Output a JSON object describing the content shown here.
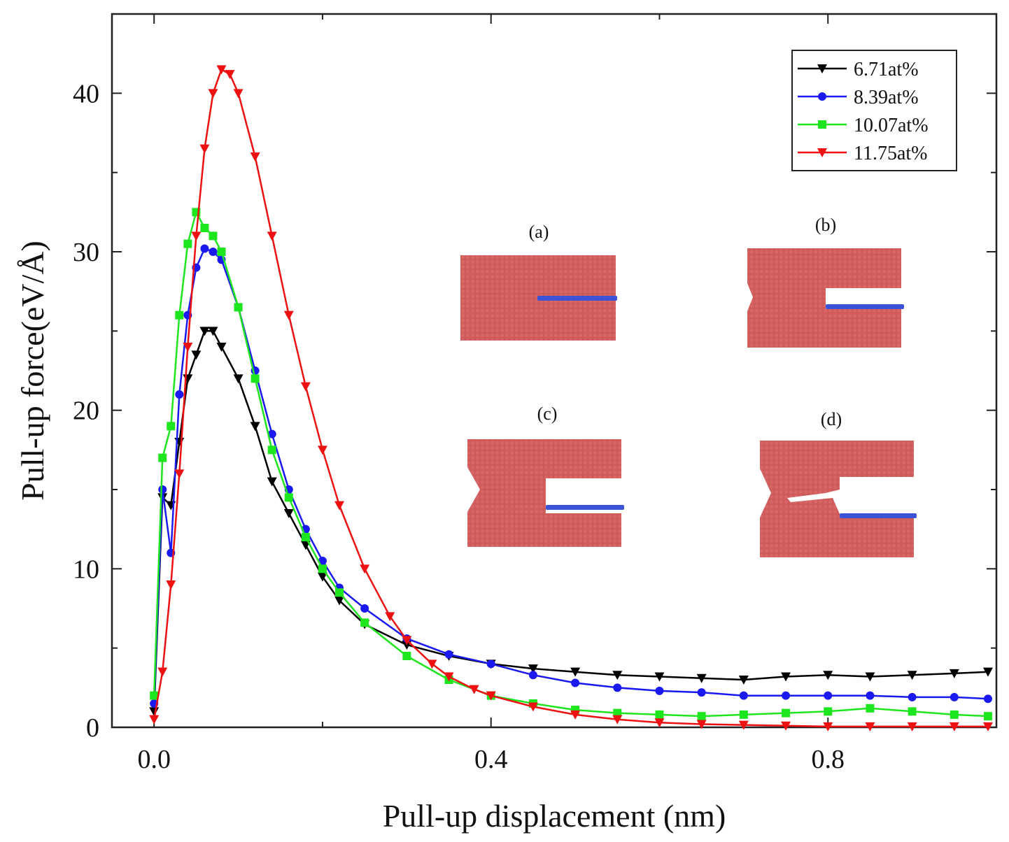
{
  "chart_data": {
    "type": "line",
    "title": "",
    "xlabel": "Pull-up displacement (nm)",
    "ylabel": "Pull-up force(eV/Å)",
    "xlim": [
      -0.05,
      1.0
    ],
    "ylim": [
      0,
      45
    ],
    "xticks": [
      0.0,
      0.4,
      0.8
    ],
    "xtick_labels": [
      "0.0",
      "0.4",
      "0.8"
    ],
    "yticks": [
      0,
      10,
      20,
      30,
      40
    ],
    "ytick_labels": [
      "0",
      "10",
      "20",
      "30",
      "40"
    ],
    "legend_position": "top-right",
    "series": [
      {
        "name": "6.71at%",
        "color": "#000000",
        "marker": "triangle-down",
        "x": [
          0.0,
          0.01,
          0.02,
          0.03,
          0.04,
          0.05,
          0.06,
          0.07,
          0.08,
          0.1,
          0.12,
          0.14,
          0.16,
          0.18,
          0.2,
          0.22,
          0.25,
          0.3,
          0.35,
          0.4,
          0.45,
          0.5,
          0.55,
          0.6,
          0.65,
          0.7,
          0.75,
          0.8,
          0.85,
          0.9,
          0.95,
          0.99
        ],
        "y": [
          1.0,
          14.5,
          14.0,
          18.0,
          22.0,
          23.5,
          25.0,
          25.0,
          24.0,
          22.0,
          19.0,
          15.5,
          13.5,
          11.5,
          9.5,
          8.0,
          6.5,
          5.2,
          4.5,
          4.0,
          3.7,
          3.5,
          3.3,
          3.2,
          3.1,
          3.0,
          3.2,
          3.3,
          3.2,
          3.3,
          3.4,
          3.5
        ]
      },
      {
        "name": "8.39at%",
        "color": "#1a1af0",
        "marker": "circle",
        "x": [
          0.0,
          0.01,
          0.02,
          0.03,
          0.04,
          0.05,
          0.06,
          0.07,
          0.08,
          0.1,
          0.12,
          0.14,
          0.16,
          0.18,
          0.2,
          0.22,
          0.25,
          0.3,
          0.35,
          0.4,
          0.45,
          0.5,
          0.55,
          0.6,
          0.65,
          0.7,
          0.75,
          0.8,
          0.85,
          0.9,
          0.95,
          0.99
        ],
        "y": [
          1.5,
          15.0,
          11.0,
          21.0,
          26.0,
          29.0,
          30.2,
          30.0,
          29.5,
          26.5,
          22.5,
          18.5,
          15.0,
          12.5,
          10.5,
          8.8,
          7.5,
          5.6,
          4.6,
          4.0,
          3.3,
          2.8,
          2.5,
          2.3,
          2.2,
          2.0,
          2.0,
          2.0,
          2.0,
          1.9,
          1.9,
          1.8
        ]
      },
      {
        "name": "10.07at%",
        "color": "#1ee61e",
        "marker": "square",
        "x": [
          0.0,
          0.01,
          0.02,
          0.03,
          0.04,
          0.05,
          0.06,
          0.07,
          0.08,
          0.1,
          0.12,
          0.14,
          0.16,
          0.18,
          0.2,
          0.22,
          0.25,
          0.3,
          0.35,
          0.4,
          0.45,
          0.5,
          0.55,
          0.6,
          0.65,
          0.7,
          0.75,
          0.8,
          0.85,
          0.9,
          0.95,
          0.99
        ],
        "y": [
          2.0,
          17.0,
          19.0,
          26.0,
          30.5,
          32.5,
          31.5,
          31.0,
          30.0,
          26.5,
          22.0,
          17.5,
          14.5,
          12.0,
          10.0,
          8.5,
          6.6,
          4.5,
          3.0,
          2.0,
          1.5,
          1.1,
          0.9,
          0.8,
          0.7,
          0.8,
          0.9,
          1.0,
          1.2,
          1.0,
          0.8,
          0.7
        ]
      },
      {
        "name": "11.75at%",
        "color": "#ee1111",
        "marker": "triangle-down",
        "x": [
          0.0,
          0.01,
          0.02,
          0.03,
          0.04,
          0.05,
          0.06,
          0.07,
          0.08,
          0.09,
          0.1,
          0.12,
          0.14,
          0.16,
          0.18,
          0.2,
          0.22,
          0.25,
          0.28,
          0.3,
          0.33,
          0.35,
          0.38,
          0.4,
          0.45,
          0.5,
          0.55,
          0.6,
          0.65,
          0.7,
          0.75,
          0.8,
          0.85,
          0.9,
          0.95,
          0.99
        ],
        "y": [
          0.5,
          3.5,
          9.0,
          16.0,
          24.0,
          31.0,
          36.5,
          40.0,
          41.5,
          41.2,
          40.0,
          36.0,
          31.0,
          26.0,
          21.5,
          17.5,
          14.0,
          10.0,
          7.0,
          5.5,
          4.0,
          3.2,
          2.4,
          2.0,
          1.3,
          0.8,
          0.5,
          0.3,
          0.2,
          0.15,
          0.1,
          0.05,
          0.05,
          0.05,
          0.05,
          0.05
        ]
      }
    ],
    "insets": [
      {
        "label": "(a)"
      },
      {
        "label": "(b)"
      },
      {
        "label": "(c)"
      },
      {
        "label": "(d)"
      }
    ]
  }
}
